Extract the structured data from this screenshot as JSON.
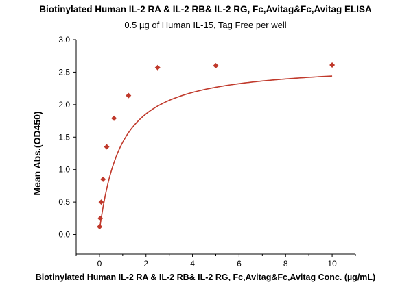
{
  "chart_data": {
    "type": "scatter",
    "title": "Biotinylated Human IL-2 RA & IL-2 RB& IL-2 RG, Fc,Avitag&Fc,Avitag ELISA",
    "subtitle": "0.5 µg of Human IL-15, Tag Free per well",
    "xlabel": "Biotinylated Human IL-2 RA & IL-2 RB& IL-2 RG, Fc,Avitag&Fc,Avitag Conc. (µg/mL)",
    "ylabel": "Mean Abs.(OD450)",
    "xlim": [
      -1,
      11
    ],
    "ylim": [
      -0.3,
      3.0
    ],
    "xticks": [
      0,
      2,
      4,
      6,
      8,
      10
    ],
    "yticks": [
      0.0,
      0.5,
      1.0,
      1.5,
      2.0,
      2.5,
      3.0
    ],
    "grid": false,
    "series": [
      {
        "color": "#C0392B",
        "marker": "diamond",
        "x": [
          0.008,
          0.039,
          0.078,
          0.156,
          0.3125,
          0.625,
          1.25,
          2.5,
          5.0,
          10.0
        ],
        "y": [
          0.12,
          0.25,
          0.5,
          0.85,
          1.35,
          1.79,
          2.14,
          2.57,
          2.6,
          2.61
        ],
        "fit": "4PL"
      }
    ]
  }
}
